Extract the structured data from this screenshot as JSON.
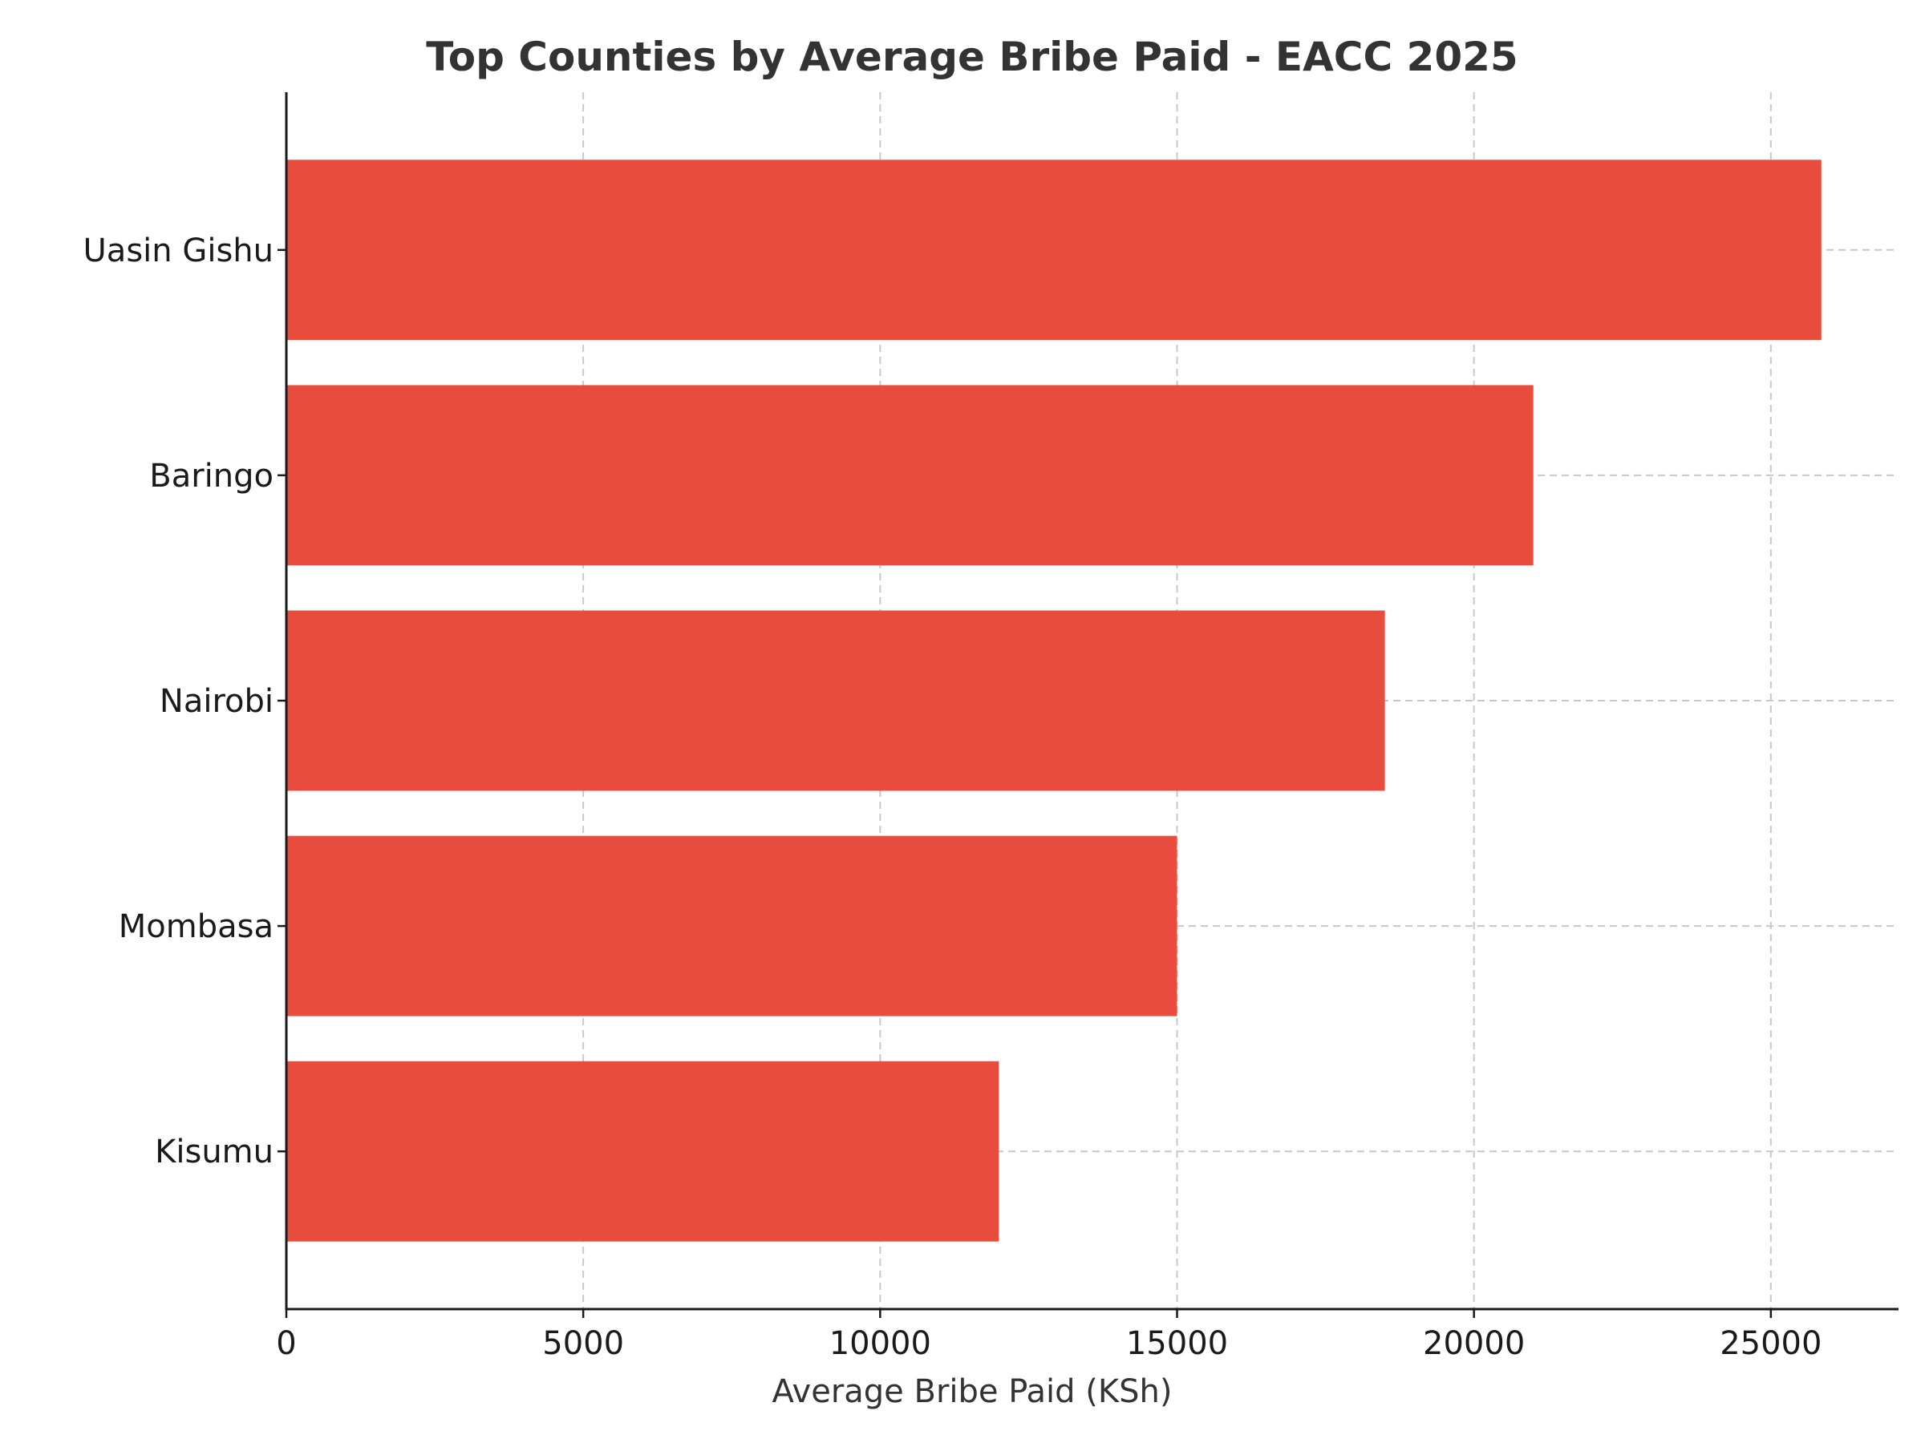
{
  "chart_data": {
    "type": "bar",
    "orientation": "horizontal",
    "title": "Top Counties by Average Bribe Paid - EACC 2025",
    "xlabel": "Average Bribe Paid (KSh)",
    "ylabel": "",
    "categories": [
      "Uasin Gishu",
      "Baringo",
      "Nairobi",
      "Mombasa",
      "Kisumu"
    ],
    "values": [
      25850,
      21000,
      18500,
      15000,
      12000
    ],
    "xlim": [
      0,
      27150
    ],
    "xticks": [
      0,
      5000,
      10000,
      15000,
      20000,
      25000
    ],
    "xtick_labels": [
      "0",
      "5000",
      "10000",
      "15000",
      "20000",
      "25000"
    ],
    "grid": true,
    "bar_color": "#e74c3c"
  }
}
